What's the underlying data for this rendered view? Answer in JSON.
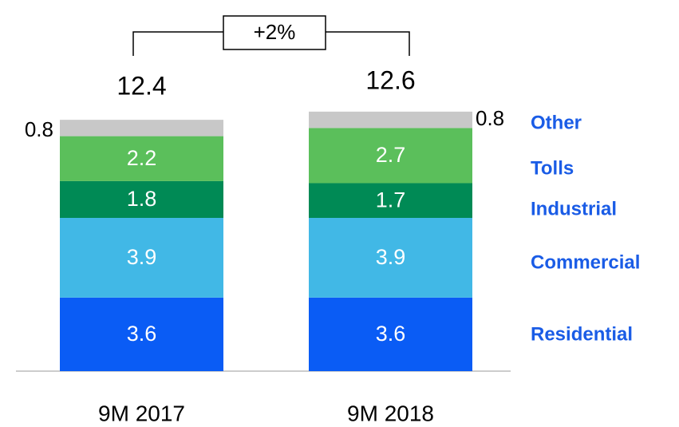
{
  "chart_data": {
    "type": "stacked_bar",
    "categories": [
      "9M 2017",
      "9M 2018"
    ],
    "series": [
      {
        "name": "Residential",
        "color": "#0a5cf5",
        "values": [
          3.6,
          3.6
        ]
      },
      {
        "name": "Commercial",
        "color": "#41b8e6",
        "values": [
          3.9,
          3.9
        ]
      },
      {
        "name": "Industrial",
        "color": "#008a55",
        "values": [
          1.8,
          1.7
        ]
      },
      {
        "name": "Tolls",
        "color": "#5bbf5b",
        "values": [
          2.2,
          2.7
        ]
      },
      {
        "name": "Other",
        "color": "#c8c8c8",
        "values": [
          0.8,
          0.8
        ]
      }
    ],
    "totals": [
      12.4,
      12.6
    ],
    "annotation": "+2%",
    "legend_color": "#1a5ce6"
  }
}
